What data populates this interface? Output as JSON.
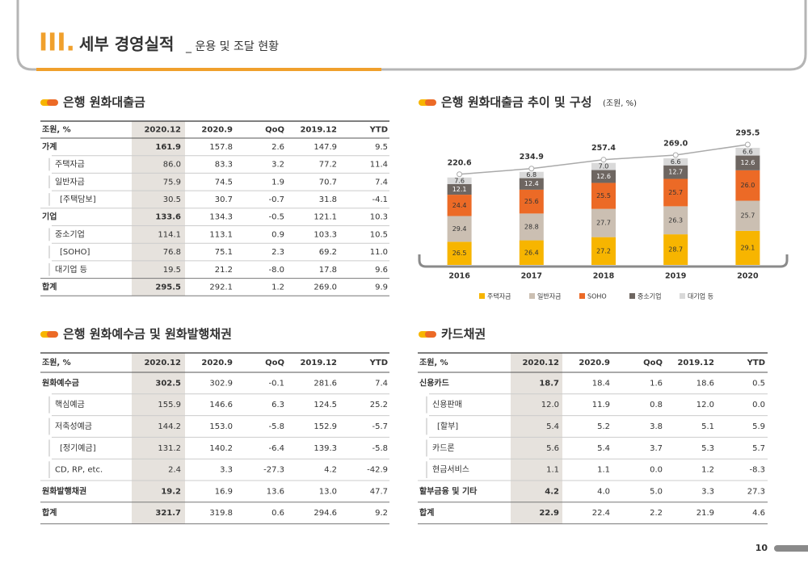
{
  "header": {
    "numeral": "III.",
    "title": "세부 경영실적",
    "subtitle": "_ 운용 및 조달 현황"
  },
  "loans_table": {
    "title": "은행 원화대출금",
    "columns": [
      "조원, %",
      "2020.12",
      "2020.9",
      "QoQ",
      "2019.12",
      "YTD"
    ],
    "rows": [
      [
        "가계",
        "161.9",
        "157.8",
        "2.6",
        "147.9",
        "9.5"
      ],
      [
        "주택자금",
        "86.0",
        "83.3",
        "3.2",
        "77.2",
        "11.4"
      ],
      [
        "일반자금",
        "75.9",
        "74.5",
        "1.9",
        "70.7",
        "7.4"
      ],
      [
        "[주택담보]",
        "30.5",
        "30.7",
        "-0.7",
        "31.8",
        "-4.1"
      ],
      [
        "기업",
        "133.6",
        "134.3",
        "-0.5",
        "121.1",
        "10.3"
      ],
      [
        "중소기업",
        "114.1",
        "113.1",
        "0.9",
        "103.3",
        "10.5"
      ],
      [
        "[SOHO]",
        "76.8",
        "75.1",
        "2.3",
        "69.2",
        "11.0"
      ],
      [
        "대기업 등",
        "19.5",
        "21.2",
        "-8.0",
        "17.8",
        "9.6"
      ],
      [
        "합계",
        "295.5",
        "292.1",
        "1.2",
        "269.0",
        "9.9"
      ]
    ]
  },
  "deposits_table": {
    "title": "은행 원화예수금 및 원화발행채권",
    "columns": [
      "조원, %",
      "2020.12",
      "2020.9",
      "QoQ",
      "2019.12",
      "YTD"
    ],
    "rows": [
      [
        "원화예수금",
        "302.5",
        "302.9",
        "-0.1",
        "281.6",
        "7.4"
      ],
      [
        "핵심예금",
        "155.9",
        "146.6",
        "6.3",
        "124.5",
        "25.2"
      ],
      [
        "저축성예금",
        "144.2",
        "153.0",
        "-5.8",
        "152.9",
        "-5.7"
      ],
      [
        "[정기예금]",
        "131.2",
        "140.2",
        "-6.4",
        "139.3",
        "-5.8"
      ],
      [
        "CD, RP, etc.",
        "2.4",
        "3.3",
        "-27.3",
        "4.2",
        "-42.9"
      ],
      [
        "원화발행채권",
        "19.2",
        "16.9",
        "13.6",
        "13.0",
        "47.7"
      ],
      [
        "합계",
        "321.7",
        "319.8",
        "0.6",
        "294.6",
        "9.2"
      ]
    ]
  },
  "card_table": {
    "title": "카드채권",
    "columns": [
      "조원, %",
      "2020.12",
      "2020.9",
      "QoQ",
      "2019.12",
      "YTD"
    ],
    "rows": [
      [
        "신용카드",
        "18.7",
        "18.4",
        "1.6",
        "18.6",
        "0.5"
      ],
      [
        "신용판매",
        "12.0",
        "11.9",
        "0.8",
        "12.0",
        "0.0"
      ],
      [
        "[할부]",
        "5.4",
        "5.2",
        "3.8",
        "5.1",
        "5.9"
      ],
      [
        "카드론",
        "5.6",
        "5.4",
        "3.7",
        "5.3",
        "5.7"
      ],
      [
        "현금서비스",
        "1.1",
        "1.1",
        "0.0",
        "1.2",
        "-8.3"
      ],
      [
        "할부금융 및 기타",
        "4.2",
        "4.0",
        "5.0",
        "3.3",
        "27.3"
      ],
      [
        "합계",
        "22.9",
        "22.4",
        "2.2",
        "21.9",
        "4.6"
      ]
    ]
  },
  "chart_data": {
    "type": "bar",
    "title": "은행 원화대출금 추이 및 구성",
    "subtitle": "(조원, %)",
    "categories": [
      "2016",
      "2017",
      "2018",
      "2019",
      "2020"
    ],
    "totals": [
      220.6,
      234.9,
      257.4,
      269.0,
      295.5
    ],
    "total_labels": [
      "220.6",
      "234.9",
      "257.4",
      "269.0",
      "295.5"
    ],
    "series": [
      {
        "name": "주택자금",
        "color": "#f7b500",
        "values": [
          26.5,
          26.4,
          27.2,
          28.7,
          29.1
        ],
        "value_labels": [
          "26.5",
          "26.4",
          "27.2",
          "28.7",
          "29.1"
        ]
      },
      {
        "name": "일반자금",
        "color": "#cbbfb2",
        "values": [
          29.4,
          28.8,
          27.7,
          26.3,
          25.7
        ],
        "value_labels": [
          "29.4",
          "28.8",
          "27.7",
          "26.3",
          "25.7"
        ]
      },
      {
        "name": "SOHO",
        "color": "#ec6a26",
        "values": [
          24.4,
          25.6,
          25.5,
          25.7,
          26.0
        ],
        "value_labels": [
          "24.4",
          "25.6",
          "25.5",
          "25.7",
          "26.0"
        ]
      },
      {
        "name": "중소기업",
        "color": "#6e6661",
        "values": [
          12.1,
          12.4,
          12.6,
          12.7,
          12.6
        ],
        "value_labels": [
          "12.1",
          "12.4",
          "12.6",
          "12.7",
          "12.6"
        ]
      },
      {
        "name": "대기업 등",
        "color": "#d9d9d9",
        "values": [
          7.6,
          6.8,
          7.0,
          6.6,
          6.6
        ],
        "value_labels": [
          "7.6",
          "6.8",
          "7.0",
          "6.6",
          "6.6"
        ]
      }
    ]
  },
  "page_number": "10"
}
